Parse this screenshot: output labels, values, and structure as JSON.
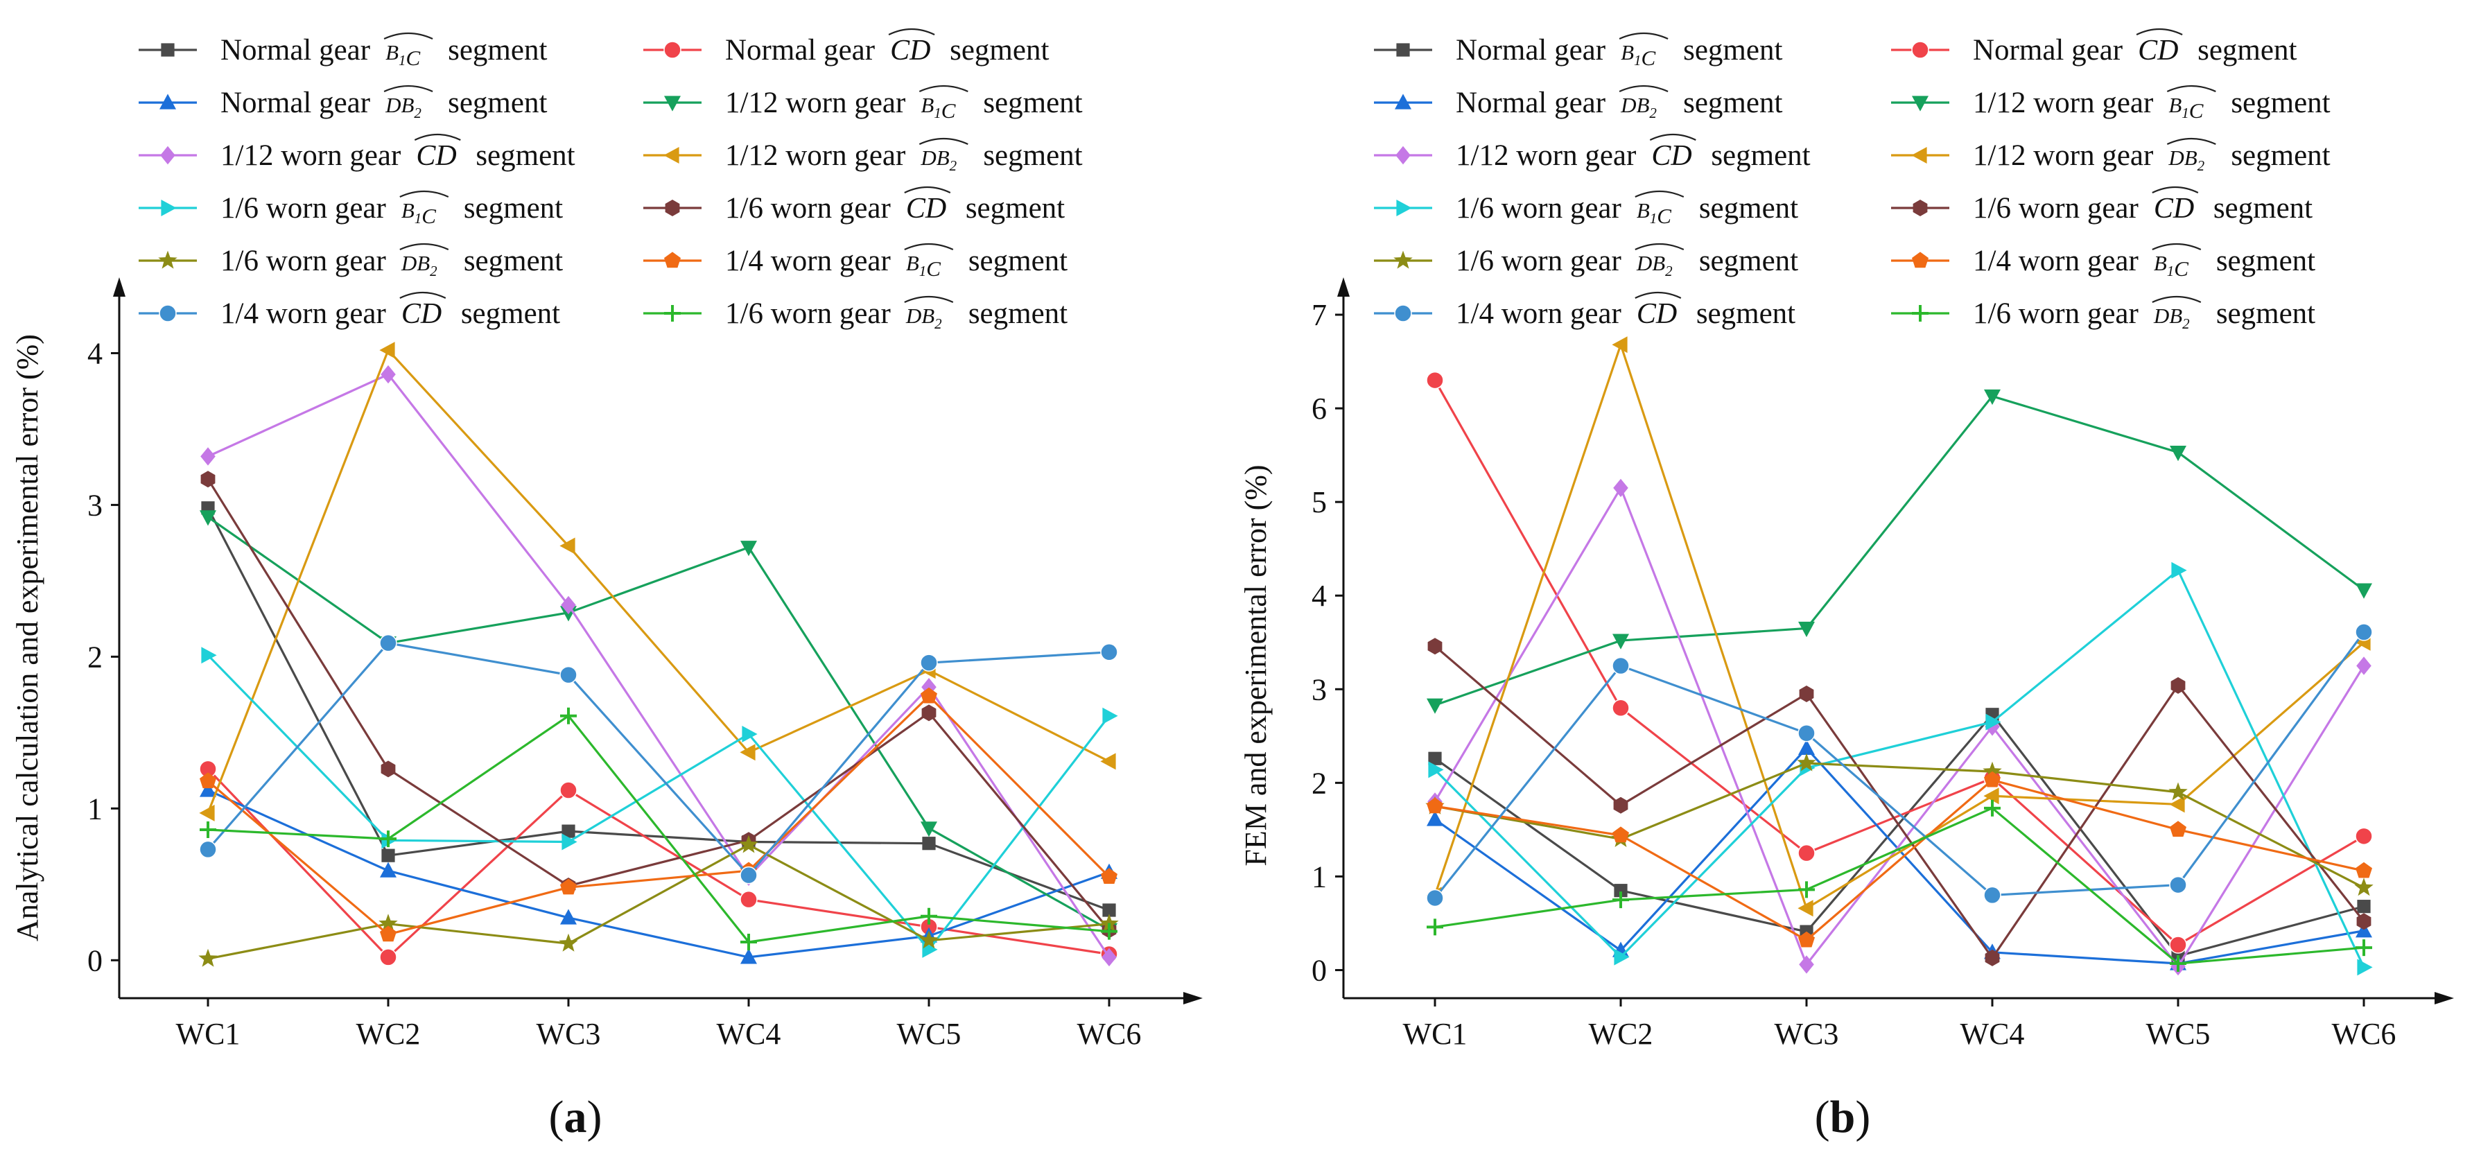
{
  "chart_data": [
    {
      "type": "line",
      "panel_label": "(a)",
      "ylabel": "Analytical calculation and experimental error (%)",
      "categories": [
        "WC1",
        "WC2",
        "WC3",
        "WC4",
        "WC5",
        "WC6"
      ],
      "ylim": [
        -0.25,
        4.5
      ],
      "yticks": [
        "0",
        "1",
        "2",
        "3",
        "4"
      ],
      "legend_position": "top",
      "series": [
        {
          "name": "Normal gear",
          "segment": "B1C",
          "suffix": "segment",
          "color": "#4a4a4a",
          "marker": "square",
          "values": [
            2.98,
            0.69,
            0.85,
            0.78,
            0.77,
            0.33
          ]
        },
        {
          "name": "Normal gear",
          "segment": "CD",
          "suffix": "segment",
          "color": "#f0434a",
          "marker": "circle",
          "values": [
            1.26,
            0.02,
            1.12,
            0.4,
            0.22,
            0.04
          ]
        },
        {
          "name": "Normal gear",
          "segment": "DB2",
          "suffix": "segment",
          "color": "#1c6fd9",
          "marker": "triangle-up",
          "values": [
            1.12,
            0.59,
            0.28,
            0.02,
            0.16,
            0.58
          ]
        },
        {
          "name": "1/12 worn gear",
          "segment": "B1C",
          "suffix": "segment",
          "color": "#16a15c",
          "marker": "triangle-down",
          "values": [
            2.92,
            2.09,
            2.29,
            2.72,
            0.87,
            0.2
          ]
        },
        {
          "name": "1/12 worn gear",
          "segment": "CD",
          "suffix": "segment",
          "color": "#c578e6",
          "marker": "diamond",
          "values": [
            3.32,
            3.86,
            2.34,
            0.55,
            1.8,
            0.02
          ]
        },
        {
          "name": "1/12 worn gear",
          "segment": "DB2",
          "suffix": "segment",
          "color": "#d99a12",
          "marker": "triangle-left",
          "values": [
            0.97,
            4.02,
            2.73,
            1.37,
            1.91,
            1.31
          ]
        },
        {
          "name": "1/6 worn gear",
          "segment": "B1C",
          "suffix": "segment",
          "color": "#1fd0d8",
          "marker": "triangle-right",
          "values": [
            2.01,
            0.79,
            0.78,
            1.49,
            0.07,
            1.61
          ]
        },
        {
          "name": "1/6 worn gear",
          "segment": "CD",
          "suffix": "segment",
          "color": "#7a3b3b",
          "marker": "hexagon",
          "values": [
            3.17,
            1.26,
            0.49,
            0.79,
            1.63,
            0.2
          ]
        },
        {
          "name": "1/6 worn gear",
          "segment": "DB2",
          "suffix": "segment",
          "color": "#8c8c15",
          "marker": "star",
          "values": [
            0.01,
            0.24,
            0.11,
            0.76,
            0.13,
            0.24
          ]
        },
        {
          "name": "1/4 worn gear",
          "segment": "B1C",
          "suffix": "segment",
          "color": "#f06a14",
          "marker": "pentagon",
          "values": [
            1.18,
            0.17,
            0.48,
            0.59,
            1.74,
            0.55
          ]
        },
        {
          "name": "1/4 worn gear",
          "segment": "CD",
          "suffix": "segment",
          "color": "#3f8fcf",
          "marker": "circle",
          "values": [
            0.73,
            2.09,
            1.88,
            0.56,
            1.96,
            2.03
          ]
        },
        {
          "name": "1/6 worn gear",
          "segment": "DB2",
          "suffix": "segment",
          "color": "#2cb82c",
          "marker": "plus",
          "values": [
            0.86,
            0.8,
            1.61,
            0.12,
            0.29,
            0.19
          ]
        }
      ]
    },
    {
      "type": "line",
      "panel_label": "(b)",
      "ylabel": "FEM and experimental error (%)",
      "categories": [
        "WC1",
        "WC2",
        "WC3",
        "WC4",
        "WC5",
        "WC6"
      ],
      "ylim": [
        -0.3,
        7.4
      ],
      "yticks": [
        "0",
        "1",
        "2",
        "3",
        "4",
        "5",
        "6",
        "7"
      ],
      "legend_position": "top",
      "series": [
        {
          "name": "Normal gear",
          "segment": "B1C",
          "suffix": "segment",
          "color": "#4a4a4a",
          "marker": "square",
          "values": [
            2.26,
            0.85,
            0.41,
            2.73,
            0.15,
            0.68
          ]
        },
        {
          "name": "Normal gear",
          "segment": "CD",
          "suffix": "segment",
          "color": "#f0434a",
          "marker": "circle",
          "values": [
            6.3,
            2.8,
            1.25,
            2.05,
            0.27,
            1.43
          ]
        },
        {
          "name": "Normal gear",
          "segment": "DB2",
          "suffix": "segment",
          "color": "#1c6fd9",
          "marker": "triangle-up",
          "values": [
            1.61,
            0.21,
            2.37,
            0.19,
            0.07,
            0.42
          ]
        },
        {
          "name": "1/12 worn gear",
          "segment": "B1C",
          "suffix": "segment",
          "color": "#16a15c",
          "marker": "triangle-down",
          "values": [
            2.83,
            3.52,
            3.65,
            6.13,
            5.53,
            4.06
          ]
        },
        {
          "name": "1/12 worn gear",
          "segment": "CD",
          "suffix": "segment",
          "color": "#c578e6",
          "marker": "diamond",
          "values": [
            1.8,
            5.15,
            0.06,
            2.6,
            0.04,
            3.25
          ]
        },
        {
          "name": "1/12 worn gear",
          "segment": "DB2",
          "suffix": "segment",
          "color": "#d99a12",
          "marker": "triangle-left",
          "values": [
            0.8,
            6.68,
            0.66,
            1.86,
            1.77,
            3.5
          ]
        },
        {
          "name": "1/6 worn gear",
          "segment": "B1C",
          "suffix": "segment",
          "color": "#1fd0d8",
          "marker": "triangle-right",
          "values": [
            2.14,
            0.14,
            2.16,
            2.65,
            4.27,
            0.03
          ]
        },
        {
          "name": "1/6 worn gear",
          "segment": "CD",
          "suffix": "segment",
          "color": "#7a3b3b",
          "marker": "hexagon",
          "values": [
            3.46,
            1.76,
            2.95,
            0.13,
            3.04,
            0.52
          ]
        },
        {
          "name": "1/6 worn gear",
          "segment": "DB2",
          "suffix": "segment",
          "color": "#8c8c15",
          "marker": "star",
          "values": [
            1.75,
            1.4,
            2.21,
            2.12,
            1.9,
            0.88
          ]
        },
        {
          "name": "1/4 worn gear",
          "segment": "B1C",
          "suffix": "segment",
          "color": "#f06a14",
          "marker": "pentagon",
          "values": [
            1.75,
            1.44,
            0.32,
            2.03,
            1.5,
            1.06
          ]
        },
        {
          "name": "1/4 worn gear",
          "segment": "CD",
          "suffix": "segment",
          "color": "#3f8fcf",
          "marker": "circle",
          "values": [
            0.77,
            3.25,
            2.53,
            0.8,
            0.91,
            3.61
          ]
        },
        {
          "name": "1/6 worn gear",
          "segment": "DB2",
          "suffix": "segment",
          "color": "#2cb82c",
          "marker": "plus",
          "values": [
            0.46,
            0.75,
            0.86,
            1.73,
            0.07,
            0.24
          ]
        }
      ]
    }
  ]
}
